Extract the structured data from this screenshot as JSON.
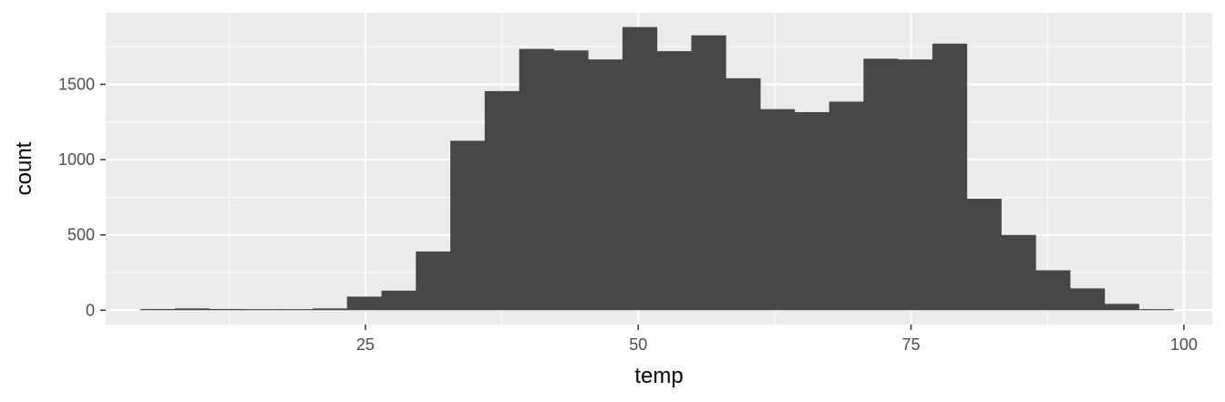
{
  "chart_data": {
    "type": "bar",
    "subtype": "histogram",
    "title": "",
    "xlabel": "temp",
    "ylabel": "count",
    "xlim": [
      1.2,
      102.6
    ],
    "ylim": [
      -95,
      1975
    ],
    "x_ticks": [
      25,
      50,
      75,
      100
    ],
    "y_ticks": [
      0,
      500,
      1000,
      1500
    ],
    "x_tick_labels": [
      "25",
      "50",
      "75",
      "100"
    ],
    "y_tick_labels": [
      "0",
      "500",
      "1000",
      "1500"
    ],
    "grid": true,
    "panel_background": "#EBEBEB",
    "grid_color": "#FFFFFF",
    "bar_color": "#474747",
    "bin_width": 3.1552,
    "bins": [
      {
        "x0": 4.38,
        "x1": 7.54,
        "count": 8
      },
      {
        "x0": 7.54,
        "x1": 10.69,
        "count": 12
      },
      {
        "x0": 10.69,
        "x1": 13.85,
        "count": 8
      },
      {
        "x0": 13.85,
        "x1": 17.0,
        "count": 5
      },
      {
        "x0": 17.0,
        "x1": 20.16,
        "count": 5
      },
      {
        "x0": 20.16,
        "x1": 23.31,
        "count": 12
      },
      {
        "x0": 23.31,
        "x1": 26.47,
        "count": 90
      },
      {
        "x0": 26.47,
        "x1": 29.62,
        "count": 130
      },
      {
        "x0": 29.62,
        "x1": 32.78,
        "count": 390
      },
      {
        "x0": 32.78,
        "x1": 35.93,
        "count": 1125
      },
      {
        "x0": 35.93,
        "x1": 39.09,
        "count": 1455
      },
      {
        "x0": 39.09,
        "x1": 42.24,
        "count": 1735
      },
      {
        "x0": 42.24,
        "x1": 45.4,
        "count": 1725
      },
      {
        "x0": 45.4,
        "x1": 48.55,
        "count": 1665
      },
      {
        "x0": 48.55,
        "x1": 51.71,
        "count": 1880
      },
      {
        "x0": 51.71,
        "x1": 54.86,
        "count": 1720
      },
      {
        "x0": 54.86,
        "x1": 58.02,
        "count": 1825
      },
      {
        "x0": 58.02,
        "x1": 61.18,
        "count": 1540
      },
      {
        "x0": 61.18,
        "x1": 64.33,
        "count": 1335
      },
      {
        "x0": 64.33,
        "x1": 67.49,
        "count": 1315
      },
      {
        "x0": 67.49,
        "x1": 70.64,
        "count": 1385
      },
      {
        "x0": 70.64,
        "x1": 73.8,
        "count": 1670
      },
      {
        "x0": 73.8,
        "x1": 76.95,
        "count": 1665
      },
      {
        "x0": 76.95,
        "x1": 80.11,
        "count": 1770
      },
      {
        "x0": 80.11,
        "x1": 83.26,
        "count": 740
      },
      {
        "x0": 83.26,
        "x1": 86.42,
        "count": 500
      },
      {
        "x0": 86.42,
        "x1": 89.57,
        "count": 265
      },
      {
        "x0": 89.57,
        "x1": 92.73,
        "count": 145
      },
      {
        "x0": 92.73,
        "x1": 95.88,
        "count": 42
      },
      {
        "x0": 95.88,
        "x1": 99.04,
        "count": 5
      }
    ]
  }
}
